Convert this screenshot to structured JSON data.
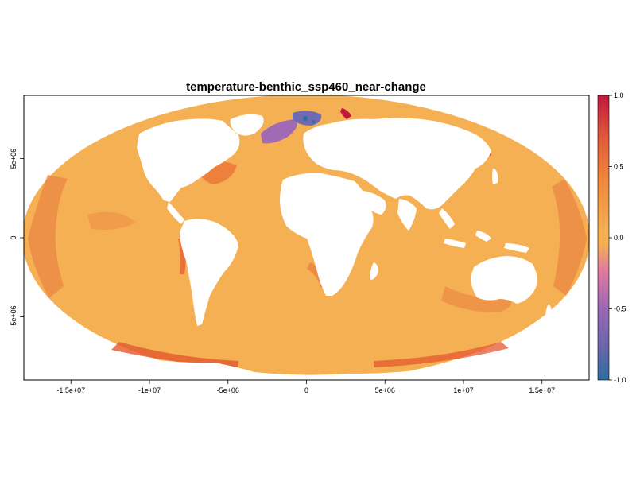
{
  "chart_data": {
    "type": "heatmap",
    "title": "temperature-benthic_ssp460_near-change",
    "projection": "mollweide",
    "xlabel": "",
    "ylabel": "",
    "x_ticks": [
      "-1.5e+07",
      "-1e+07",
      "-5e+06",
      "0",
      "5e+06",
      "1e+07",
      "1.5e+07"
    ],
    "x_tick_values": [
      -15000000,
      -10000000,
      -5000000,
      0,
      5000000,
      10000000,
      15000000
    ],
    "y_ticks": [
      "-5e+06",
      "0",
      "5e+06"
    ],
    "y_tick_values": [
      -5000000,
      0,
      5000000
    ],
    "xlim": [
      -18000000,
      18000000
    ],
    "ylim": [
      -9000000,
      9000000
    ],
    "legend": {
      "position": "right",
      "range": [
        -1.0,
        1.0
      ],
      "tick_labels": [
        "-1.0",
        "-0.5",
        "0.0",
        "0.5",
        "1.0"
      ],
      "tick_values": [
        -1.0,
        -0.5,
        0.0,
        0.5,
        1.0
      ]
    },
    "colors": {
      "ocean_baseline": "#f5b054",
      "warm": "#e4582e",
      "hot": "#c2203e",
      "cool": "#e87aa0",
      "cold": "#8f64b8",
      "coldest": "#2b6ea0",
      "land": "#ffffff"
    }
  }
}
